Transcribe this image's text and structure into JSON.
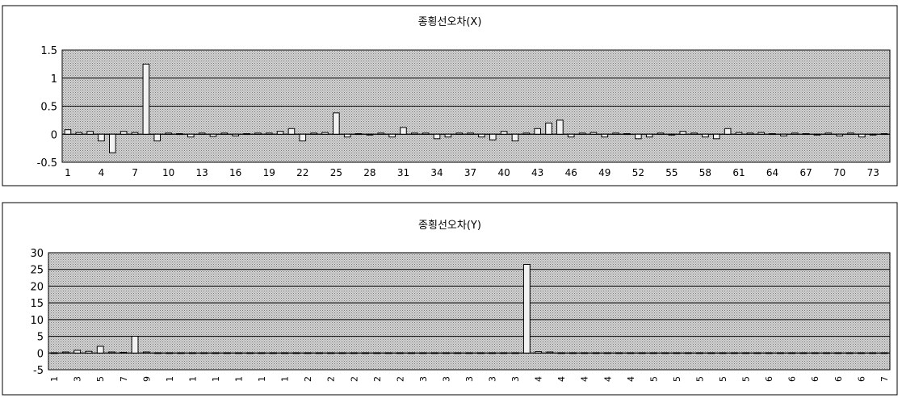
{
  "chart_data": [
    {
      "type": "bar",
      "title": "종횡선오차(X)",
      "ylim": [
        -0.5,
        1.5
      ],
      "yticks": [
        -0.5,
        0,
        0.5,
        1,
        1.5
      ],
      "ytick_labels": [
        "-0.5",
        "0",
        "0.5",
        "1",
        "1.5"
      ],
      "grid": true,
      "legend": "none",
      "categories": [
        1,
        2,
        3,
        4,
        5,
        6,
        7,
        8,
        9,
        10,
        11,
        12,
        13,
        14,
        15,
        16,
        17,
        18,
        19,
        20,
        21,
        22,
        23,
        24,
        25,
        26,
        27,
        28,
        29,
        30,
        31,
        32,
        33,
        34,
        35,
        36,
        37,
        38,
        39,
        40,
        41,
        42,
        43,
        44,
        45,
        46,
        47,
        48,
        49,
        50,
        51,
        52,
        53,
        54,
        55,
        56,
        57,
        58,
        59,
        60,
        61,
        62,
        63,
        64,
        65,
        66,
        67,
        68,
        69,
        70,
        71,
        72,
        73,
        74
      ],
      "xtick_labels": [
        "1",
        "4",
        "7",
        "10",
        "13",
        "16",
        "19",
        "22",
        "25",
        "28",
        "31",
        "34",
        "37",
        "40",
        "43",
        "46",
        "49",
        "52",
        "55",
        "58",
        "61",
        "64",
        "67",
        "70",
        "73"
      ],
      "values": [
        0.08,
        0.03,
        0.05,
        -0.12,
        -0.33,
        0.05,
        0.03,
        1.25,
        -0.12,
        0.02,
        0.01,
        -0.05,
        0.02,
        -0.04,
        0.02,
        -0.03,
        0.01,
        0.02,
        0.02,
        0.05,
        0.1,
        -0.12,
        0.02,
        0.03,
        0.38,
        -0.05,
        0.01,
        0.0,
        0.02,
        -0.05,
        0.12,
        0.02,
        0.02,
        -0.08,
        -0.05,
        0.02,
        0.02,
        -0.05,
        -0.1,
        0.05,
        -0.12,
        0.02,
        0.1,
        0.2,
        0.25,
        -0.05,
        0.02,
        0.03,
        -0.05,
        0.02,
        0.01,
        -0.08,
        -0.05,
        0.02,
        0.0,
        0.05,
        0.02,
        -0.05,
        -0.08,
        0.1,
        0.03,
        0.02,
        0.03,
        0.01,
        -0.03,
        0.02,
        0.01,
        0.0,
        0.02,
        -0.03,
        0.02,
        -0.05,
        0.0,
        0.01
      ]
    },
    {
      "type": "bar",
      "title": "종횡선오차(Y)",
      "ylim": [
        -5,
        30
      ],
      "yticks": [
        -5,
        0,
        5,
        10,
        15,
        20,
        25,
        30
      ],
      "ytick_labels": [
        "-5",
        "0",
        "5",
        "10",
        "15",
        "20",
        "25",
        "30"
      ],
      "grid": true,
      "legend": "none",
      "categories": [
        1,
        2,
        3,
        4,
        5,
        6,
        7,
        8,
        9,
        10,
        11,
        12,
        13,
        14,
        15,
        16,
        17,
        18,
        19,
        20,
        21,
        22,
        23,
        24,
        25,
        26,
        27,
        28,
        29,
        30,
        31,
        32,
        33,
        34,
        35,
        36,
        37,
        38,
        39,
        40,
        41,
        42,
        43,
        44,
        45,
        46,
        47,
        48,
        49,
        50,
        51,
        52,
        53,
        54,
        55,
        56,
        57,
        58,
        59,
        60,
        61,
        62,
        63,
        64,
        65,
        66,
        67,
        68,
        69,
        70,
        71,
        72,
        73
      ],
      "xtick_labels": [
        "1",
        "3",
        "5",
        "7",
        "9",
        "1",
        "1",
        "1",
        "1",
        "1",
        "1",
        "2",
        "2",
        "2",
        "2",
        "2",
        "3",
        "3",
        "3",
        "3",
        "3",
        "4",
        "4",
        "4",
        "4",
        "4",
        "5",
        "5",
        "5",
        "5",
        "5",
        "6",
        "6",
        "6",
        "6",
        "6",
        "7",
        "7"
      ],
      "values": [
        0.1,
        0.3,
        0.8,
        0.5,
        2.0,
        0.3,
        0.2,
        5.0,
        0.3,
        0.1,
        0.1,
        0.1,
        0.1,
        0.1,
        0.1,
        0.1,
        0.1,
        0.1,
        0.1,
        0.1,
        0.1,
        0.1,
        0.1,
        0.1,
        0.1,
        0.1,
        0.1,
        0.1,
        0.1,
        0.1,
        0.1,
        0.1,
        0.1,
        0.1,
        0.1,
        0.1,
        0.1,
        0.1,
        0.1,
        0.1,
        0.1,
        26.5,
        0.4,
        0.3,
        0.1,
        0.1,
        0.1,
        0.1,
        0.1,
        0.1,
        0.1,
        0.1,
        0.1,
        0.1,
        0.1,
        0.1,
        0.1,
        0.1,
        0.1,
        0.1,
        0.1,
        0.1,
        0.1,
        0.1,
        0.1,
        0.1,
        0.1,
        0.1,
        0.1,
        0.1,
        0.1,
        0.1,
        0.1
      ]
    }
  ]
}
